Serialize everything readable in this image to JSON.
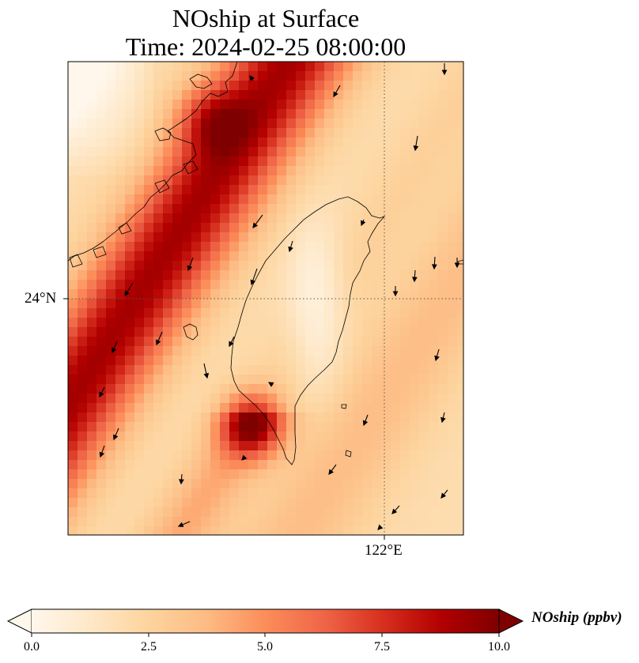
{
  "title": {
    "line1": "NOship at Surface",
    "line2": "Time: 2024-02-25 08:00:00"
  },
  "axes": {
    "lat_label": "24°N",
    "lon_label": "122°E"
  },
  "colorbar": {
    "label": "NOship (ppbv)",
    "ticks": [
      "0.0",
      "2.5",
      "5.0",
      "7.5",
      "10.0"
    ],
    "min": 0,
    "max": 10,
    "extend": "both",
    "colormap": "OrRd"
  },
  "colors": {
    "c0": "#fff7ec",
    "c1": "#fee8c8",
    "c2": "#fdd49e",
    "c3": "#fdbb84",
    "c4": "#fc8d59",
    "c5": "#ef6548",
    "c6": "#d7301f",
    "c7": "#b30000",
    "c8": "#7f0000"
  },
  "chart_data": {
    "type": "heatmap",
    "title": "NOship at Surface Time: 2024-02-25 08:00:00",
    "xlabel": "",
    "ylabel": "",
    "gridlines": [
      "24°N",
      "122°E"
    ],
    "colorbar_range": [
      0,
      10
    ]
  }
}
